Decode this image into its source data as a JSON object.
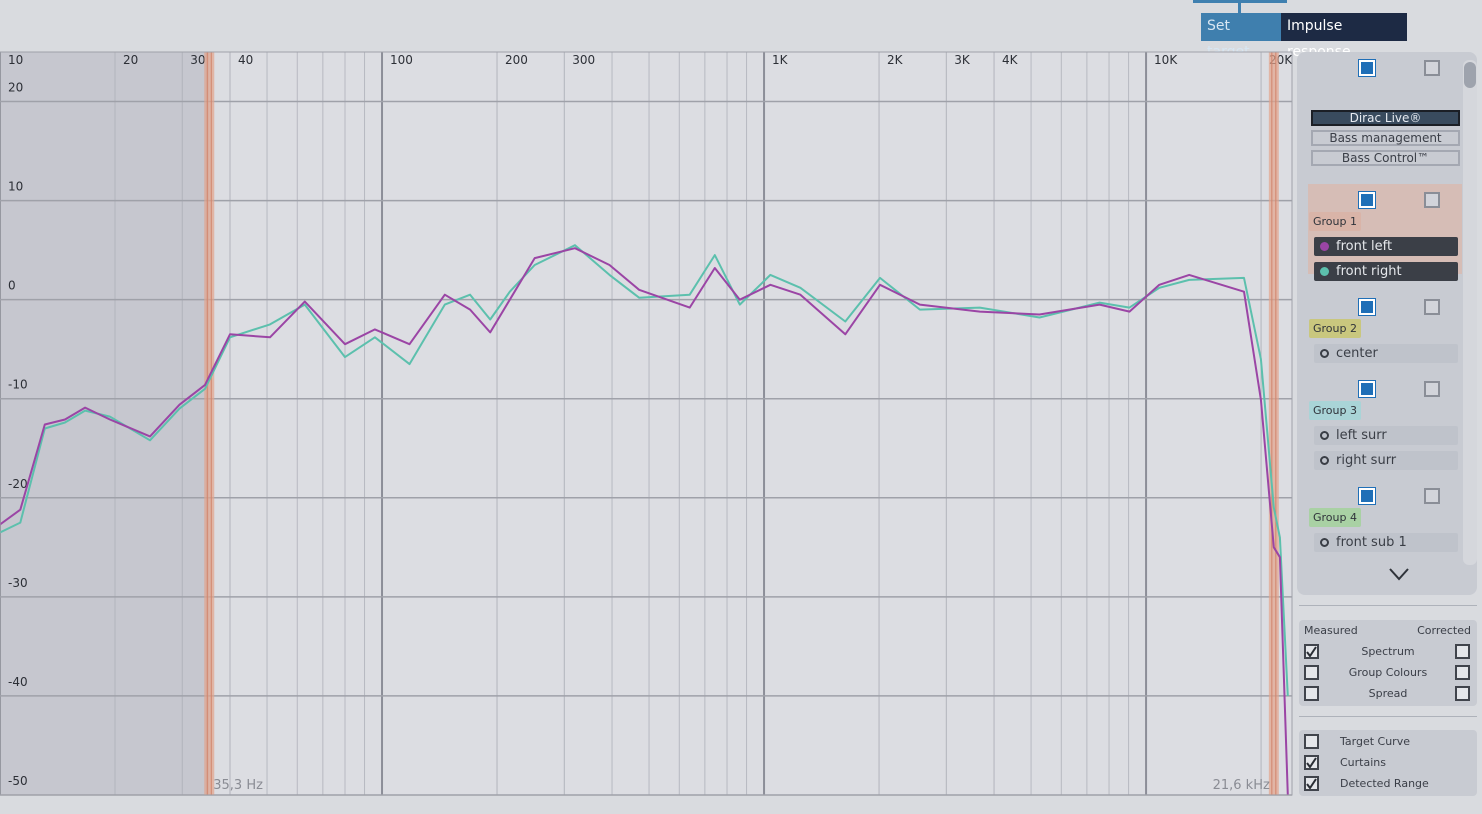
{
  "toolbar": {
    "buttons": [
      "Set target",
      "Impulse response"
    ]
  },
  "chart_data": {
    "type": "line",
    "xscale": "log",
    "xlim": [
      10,
      24100
    ],
    "ylim": [
      -50,
      25
    ],
    "xticks": [
      10,
      20,
      30,
      40,
      100,
      200,
      300,
      {
        "value": 1000,
        "label": "1K"
      },
      {
        "value": 2000,
        "label": "2K"
      },
      {
        "value": 3000,
        "label": "3K"
      },
      {
        "value": 4000,
        "label": "4K"
      },
      {
        "value": 10000,
        "label": "10K"
      },
      {
        "value": 20000,
        "label": "20K"
      }
    ],
    "xgrid_minor": [
      50,
      60,
      70,
      80,
      90,
      400,
      500,
      600,
      700,
      800,
      900,
      5000,
      6000,
      7000,
      8000,
      9000
    ],
    "yticks": [
      -50,
      -40,
      -30,
      -20,
      -10,
      0,
      10,
      20
    ],
    "grid": true,
    "curtains": [
      {
        "value": 35.3,
        "label": "35,3 Hz"
      },
      {
        "value": 21600,
        "label": "21,6 kHz"
      }
    ],
    "x": [
      10,
      11.3,
      13.1,
      14.8,
      16.7,
      19.4,
      24.7,
      29.5,
      34.4,
      40,
      50.9,
      62.8,
      80,
      95.8,
      118,
      146,
      170,
      192,
      216,
      251,
      320,
      394,
      471,
      639,
      743,
      864,
      1039,
      1245,
      1632,
      2012,
      2558,
      3672,
      5260,
      7556,
      9049,
      10830,
      12967,
      18050,
      19980,
      21600,
      22400,
      23500
    ],
    "series": [
      {
        "name": "front left",
        "color": "#9b45a5",
        "values": [
          -22.7,
          -21.2,
          -12.6,
          -12.1,
          -10.9,
          -12.1,
          -13.8,
          -10.6,
          -8.6,
          -3.5,
          -3.8,
          -0.2,
          -4.5,
          -3.0,
          -4.5,
          0.5,
          -1.0,
          -3.3,
          0,
          4.2,
          5.2,
          3.5,
          1.0,
          -0.8,
          3.2,
          0,
          1.5,
          0.5,
          -3.5,
          1.5,
          -0.5,
          -1.2,
          -1.5,
          -0.5,
          -1.2,
          1.5,
          2.5,
          0.8,
          -10.1,
          -25,
          -26,
          -50
        ]
      },
      {
        "name": "front right",
        "color": "#5cc0ad",
        "values": [
          -23.5,
          -22.5,
          -13.0,
          -12.4,
          -11.2,
          -11.8,
          -14.2,
          -11.0,
          -9.0,
          -3.8,
          -2.5,
          -0.5,
          -5.8,
          -3.8,
          -6.5,
          -0.5,
          0.5,
          -2.0,
          0.8,
          3.5,
          5.5,
          2.5,
          0.2,
          0.5,
          4.5,
          -0.5,
          2.5,
          1.2,
          -2.2,
          2.2,
          -1.0,
          -0.8,
          -1.8,
          -0.3,
          -0.8,
          1.2,
          2.0,
          2.2,
          -6.0,
          -21,
          -24,
          -40
        ]
      }
    ]
  },
  "panel": {
    "modes": [
      "Dirac Live®",
      "Bass management",
      "Bass Control™"
    ],
    "groups": [
      {
        "name": "Group 1",
        "color": "#d9b4a8",
        "channels": [
          "front left",
          "front right"
        ]
      },
      {
        "name": "Group 2",
        "color": "#c9c77e",
        "channels": [
          "center"
        ]
      },
      {
        "name": "Group 3",
        "color": "#a9d4d7",
        "channels": [
          "left surr",
          "right surr"
        ]
      },
      {
        "name": "Group 4",
        "color": "#a9d1a4",
        "channels": [
          "front sub 1"
        ]
      }
    ]
  },
  "display": {
    "headers": [
      "Measured",
      "Corrected"
    ],
    "rows": [
      {
        "label": "Spectrum",
        "measured": true,
        "corrected": false
      },
      {
        "label": "Group Colours",
        "measured": false,
        "corrected": false
      },
      {
        "label": "Spread",
        "measured": false,
        "corrected": false
      }
    ]
  },
  "overlays": [
    {
      "label": "Target Curve",
      "checked": false
    },
    {
      "label": "Curtains",
      "checked": true
    },
    {
      "label": "Detected Range",
      "checked": true
    }
  ]
}
